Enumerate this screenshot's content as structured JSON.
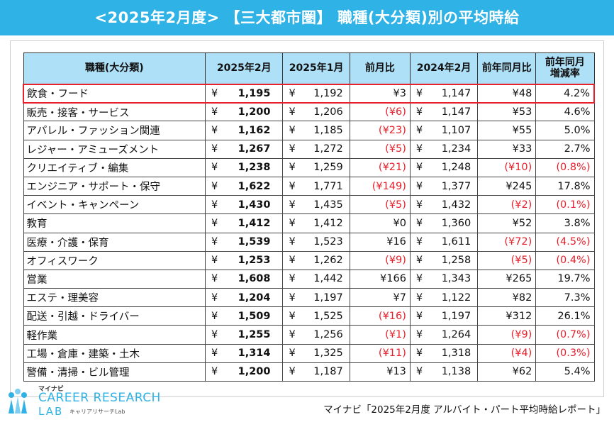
{
  "title": "<2025年2月度> 【三大都市圏】 職種(大分類)別の平均時給",
  "headers": {
    "category": "職種(大分類)",
    "current": "2025年2月",
    "prev_month": "2025年1月",
    "mom": "前月比",
    "prev_year": "2024年2月",
    "yoy": "前年同月比",
    "yoy_rate": "前年同月増減率"
  },
  "currency_mark": "¥",
  "rows": [
    {
      "category": "飲食・フード",
      "current": "1,195",
      "prev_month": "1,192",
      "mom": "¥3",
      "mom_neg": false,
      "prev_year": "1,147",
      "yoy": "¥48",
      "yoy_neg": false,
      "yoy_rate": "4.2%",
      "rate_neg": false,
      "highlight": true
    },
    {
      "category": "販売・接客・サービス",
      "current": "1,200",
      "prev_month": "1,206",
      "mom": "(¥6)",
      "mom_neg": true,
      "prev_year": "1,147",
      "yoy": "¥53",
      "yoy_neg": false,
      "yoy_rate": "4.6%",
      "rate_neg": false,
      "highlight": false
    },
    {
      "category": "アパレル・ファッション関連",
      "current": "1,162",
      "prev_month": "1,185",
      "mom": "(¥23)",
      "mom_neg": true,
      "prev_year": "1,107",
      "yoy": "¥55",
      "yoy_neg": false,
      "yoy_rate": "5.0%",
      "rate_neg": false,
      "highlight": false
    },
    {
      "category": "レジャー・アミューズメント",
      "current": "1,267",
      "prev_month": "1,272",
      "mom": "(¥5)",
      "mom_neg": true,
      "prev_year": "1,234",
      "yoy": "¥33",
      "yoy_neg": false,
      "yoy_rate": "2.7%",
      "rate_neg": false,
      "highlight": false
    },
    {
      "category": "クリエイティブ・編集",
      "current": "1,238",
      "prev_month": "1,259",
      "mom": "(¥21)",
      "mom_neg": true,
      "prev_year": "1,248",
      "yoy": "(¥10)",
      "yoy_neg": true,
      "yoy_rate": "(0.8%)",
      "rate_neg": true,
      "highlight": false
    },
    {
      "category": "エンジニア・サポート・保守",
      "current": "1,622",
      "prev_month": "1,771",
      "mom": "(¥149)",
      "mom_neg": true,
      "prev_year": "1,377",
      "yoy": "¥245",
      "yoy_neg": false,
      "yoy_rate": "17.8%",
      "rate_neg": false,
      "highlight": false
    },
    {
      "category": "イベント・キャンペーン",
      "current": "1,430",
      "prev_month": "1,435",
      "mom": "(¥5)",
      "mom_neg": true,
      "prev_year": "1,432",
      "yoy": "(¥2)",
      "yoy_neg": true,
      "yoy_rate": "(0.1%)",
      "rate_neg": true,
      "highlight": false
    },
    {
      "category": "教育",
      "current": "1,412",
      "prev_month": "1,412",
      "mom": "¥0",
      "mom_neg": false,
      "prev_year": "1,360",
      "yoy": "¥52",
      "yoy_neg": false,
      "yoy_rate": "3.8%",
      "rate_neg": false,
      "highlight": false
    },
    {
      "category": "医療・介護・保育",
      "current": "1,539",
      "prev_month": "1,523",
      "mom": "¥16",
      "mom_neg": false,
      "prev_year": "1,611",
      "yoy": "(¥72)",
      "yoy_neg": true,
      "yoy_rate": "(4.5%)",
      "rate_neg": true,
      "highlight": false
    },
    {
      "category": "オフィスワーク",
      "current": "1,253",
      "prev_month": "1,262",
      "mom": "(¥9)",
      "mom_neg": true,
      "prev_year": "1,258",
      "yoy": "(¥5)",
      "yoy_neg": true,
      "yoy_rate": "(0.4%)",
      "rate_neg": true,
      "highlight": false
    },
    {
      "category": "営業",
      "current": "1,608",
      "prev_month": "1,442",
      "mom": "¥166",
      "mom_neg": false,
      "prev_year": "1,343",
      "yoy": "¥265",
      "yoy_neg": false,
      "yoy_rate": "19.7%",
      "rate_neg": false,
      "highlight": false
    },
    {
      "category": "エステ・理美容",
      "current": "1,204",
      "prev_month": "1,197",
      "mom": "¥7",
      "mom_neg": false,
      "prev_year": "1,122",
      "yoy": "¥82",
      "yoy_neg": false,
      "yoy_rate": "7.3%",
      "rate_neg": false,
      "highlight": false
    },
    {
      "category": "配送・引越・ドライバー",
      "current": "1,509",
      "prev_month": "1,525",
      "mom": "(¥16)",
      "mom_neg": true,
      "prev_year": "1,197",
      "yoy": "¥312",
      "yoy_neg": false,
      "yoy_rate": "26.1%",
      "rate_neg": false,
      "highlight": false
    },
    {
      "category": "軽作業",
      "current": "1,255",
      "prev_month": "1,256",
      "mom": "(¥1)",
      "mom_neg": true,
      "prev_year": "1,264",
      "yoy": "(¥9)",
      "yoy_neg": true,
      "yoy_rate": "(0.7%)",
      "rate_neg": true,
      "highlight": false
    },
    {
      "category": "工場・倉庫・建築・土木",
      "current": "1,314",
      "prev_month": "1,325",
      "mom": "(¥11)",
      "mom_neg": true,
      "prev_year": "1,318",
      "yoy": "(¥4)",
      "yoy_neg": true,
      "yoy_rate": "(0.3%)",
      "rate_neg": true,
      "highlight": false
    },
    {
      "category": "警備・清掃・ビル管理",
      "current": "1,200",
      "prev_month": "1,187",
      "mom": "¥13",
      "mom_neg": false,
      "prev_year": "1,138",
      "yoy": "¥62",
      "yoy_neg": false,
      "yoy_rate": "5.4%",
      "rate_neg": false,
      "highlight": false
    }
  ],
  "logo": {
    "top": "マイナビ",
    "main": "CAREER RESEARCH",
    "lab": "LAB",
    "sub": "キャリアリサーチLab"
  },
  "source": "マイナビ「2025年2月度 アルバイト・パート平均時給レポート」",
  "colors": {
    "accent": "#2fb2e6",
    "header_bg": "#aee1f8",
    "negative": "#e8202b"
  }
}
